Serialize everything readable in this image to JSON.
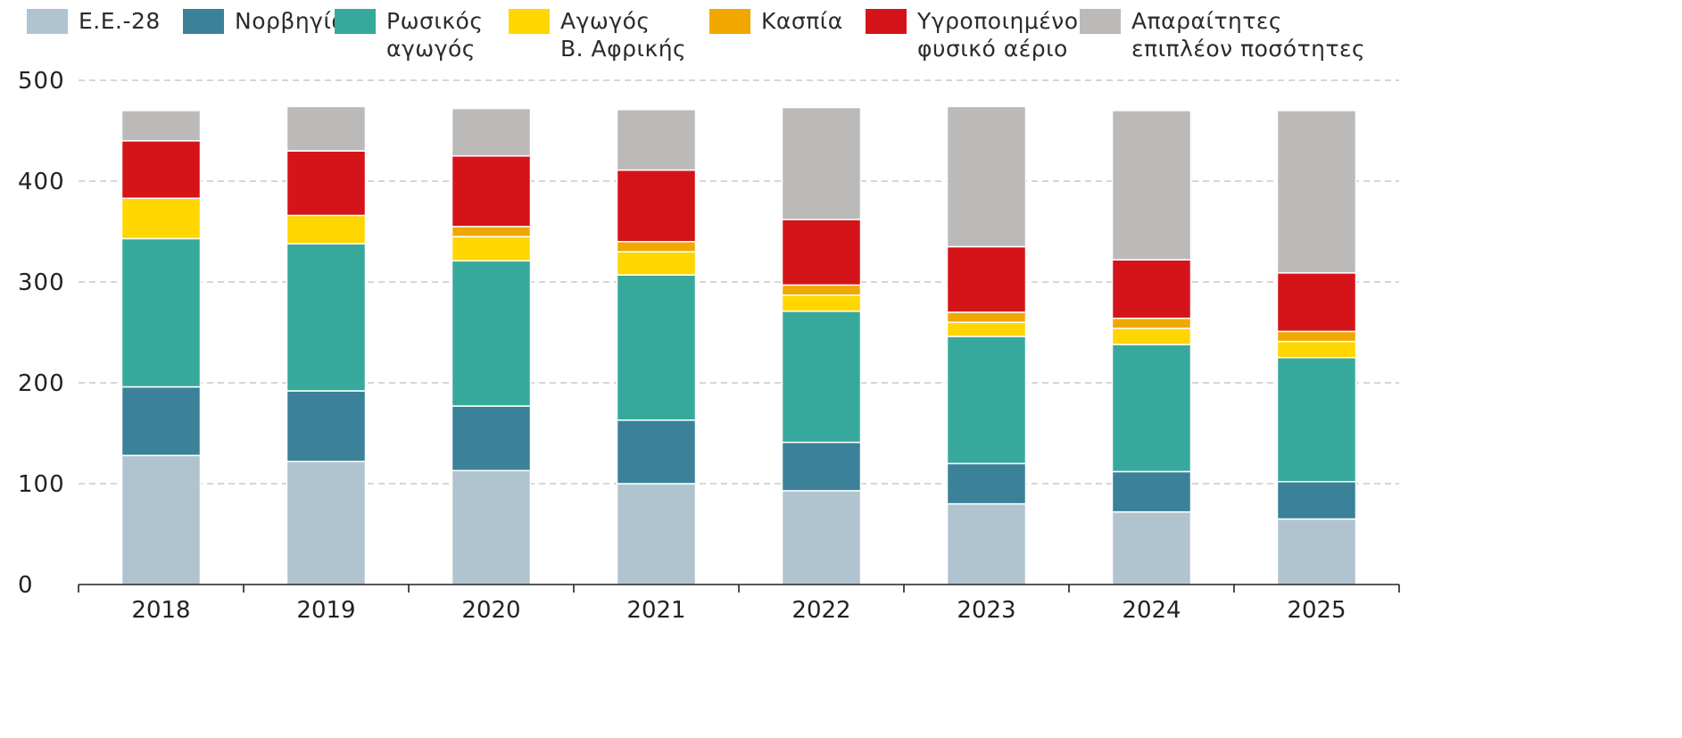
{
  "chart_data": {
    "type": "bar",
    "stacked": true,
    "title": "",
    "xlabel": "",
    "ylabel": "",
    "ylim": [
      0,
      500
    ],
    "yticks": [
      0,
      100,
      200,
      300,
      400,
      500
    ],
    "grid": true,
    "legend_position": "top",
    "categories": [
      "2018",
      "2019",
      "2020",
      "2021",
      "2022",
      "2023",
      "2024",
      "2025"
    ],
    "series": [
      {
        "name": "Ε.Ε.-28",
        "color": "#b0c4d0",
        "values": [
          128,
          122,
          113,
          100,
          93,
          80,
          72,
          65
        ]
      },
      {
        "name": "Νορβηγία",
        "color": "#3a8199",
        "values": [
          68,
          70,
          64,
          63,
          48,
          40,
          40,
          37
        ]
      },
      {
        "name": "Ρωσικός\nαγωγός",
        "color": "#37a99c",
        "values": [
          147,
          146,
          144,
          144,
          130,
          126,
          126,
          123
        ]
      },
      {
        "name": "Αγωγός\nΒ. Αφρικής",
        "color": "#ffd600",
        "values": [
          40,
          28,
          24,
          23,
          16,
          14,
          16,
          16
        ]
      },
      {
        "name": "Κασπία",
        "color": "#f0a800",
        "values": [
          0,
          0,
          10,
          10,
          10,
          10,
          10,
          10
        ]
      },
      {
        "name": "Υγροποιημένο\nφυσικό αέριο",
        "color": "#d41419",
        "values": [
          57,
          64,
          70,
          71,
          65,
          65,
          58,
          58
        ]
      },
      {
        "name": "Απαραίτητες\nεπιπλέον ποσότητες",
        "color": "#bcb9b9",
        "values": [
          30,
          44,
          47,
          60,
          111,
          139,
          148,
          161
        ]
      }
    ]
  }
}
